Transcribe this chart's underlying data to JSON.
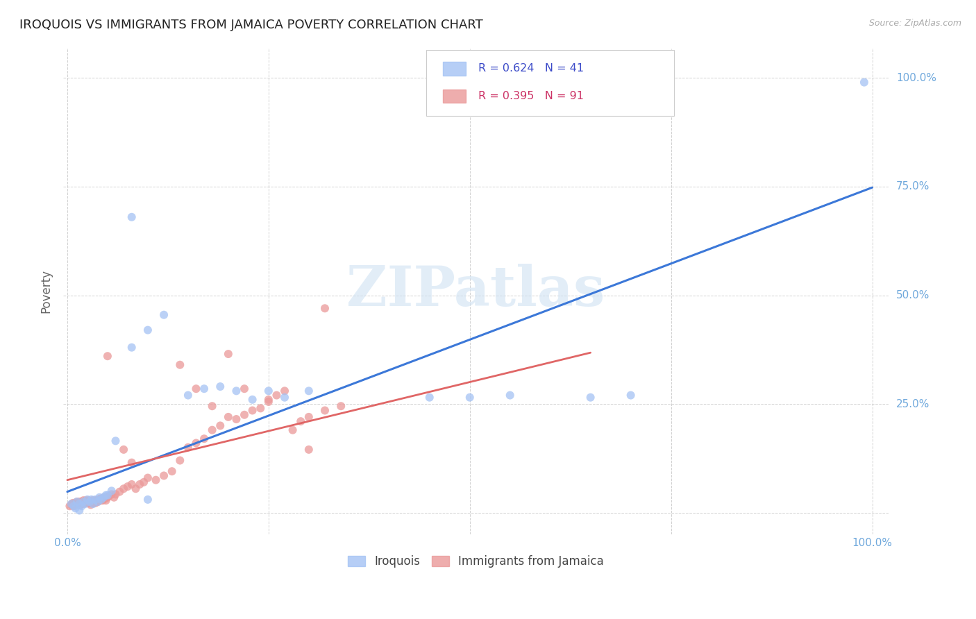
{
  "title": "IROQUOIS VS IMMIGRANTS FROM JAMAICA POVERTY CORRELATION CHART",
  "source": "Source: ZipAtlas.com",
  "ylabel": "Poverty",
  "series1_label": "Iroquois",
  "series2_label": "Immigrants from Jamaica",
  "series1_color": "#a4c2f4",
  "series2_color": "#ea9999",
  "series1_R": "0.624",
  "series1_N": "41",
  "series2_R": "0.395",
  "series2_N": "91",
  "regression1_color": "#3c78d8",
  "regression2_color": "#e06666",
  "watermark_color": "#cfe2f3",
  "background_color": "#ffffff",
  "grid_color": "#cccccc",
  "title_fontsize": 13,
  "legend_text_color": "#3c4bc8",
  "tick_label_color": "#6fa8dc",
  "axis_label_color": "#666666",
  "xlim": [
    -0.005,
    1.02
  ],
  "ylim": [
    -0.05,
    1.07
  ],
  "blue_line_x0": 0.0,
  "blue_line_y0": 0.048,
  "blue_line_x1": 1.0,
  "blue_line_y1": 0.748,
  "pink_line_x0": 0.0,
  "pink_line_y0": 0.075,
  "pink_line_x1": 0.65,
  "pink_line_y1": 0.368,
  "s1_x": [
    0.005,
    0.008,
    0.01,
    0.012,
    0.015,
    0.018,
    0.02,
    0.022,
    0.025,
    0.028,
    0.03,
    0.032,
    0.035,
    0.038,
    0.04,
    0.042,
    0.045,
    0.048,
    0.05,
    0.055,
    0.06,
    0.08,
    0.1,
    0.12,
    0.15,
    0.17,
    0.19,
    0.21,
    0.23,
    0.25,
    0.27,
    0.3,
    0.45,
    0.5,
    0.55,
    0.65,
    0.7,
    0.08,
    0.1,
    0.99,
    0.015
  ],
  "s1_y": [
    0.02,
    0.015,
    0.01,
    0.025,
    0.02,
    0.015,
    0.025,
    0.02,
    0.03,
    0.025,
    0.03,
    0.02,
    0.03,
    0.025,
    0.035,
    0.03,
    0.035,
    0.04,
    0.04,
    0.05,
    0.165,
    0.38,
    0.42,
    0.455,
    0.27,
    0.285,
    0.29,
    0.28,
    0.26,
    0.28,
    0.265,
    0.28,
    0.265,
    0.265,
    0.27,
    0.265,
    0.27,
    0.68,
    0.03,
    0.99,
    0.005
  ],
  "s2_x": [
    0.003,
    0.005,
    0.006,
    0.007,
    0.008,
    0.009,
    0.01,
    0.011,
    0.012,
    0.013,
    0.014,
    0.015,
    0.016,
    0.017,
    0.018,
    0.019,
    0.02,
    0.021,
    0.022,
    0.023,
    0.024,
    0.025,
    0.026,
    0.027,
    0.028,
    0.029,
    0.03,
    0.031,
    0.032,
    0.033,
    0.034,
    0.035,
    0.036,
    0.037,
    0.038,
    0.039,
    0.04,
    0.041,
    0.042,
    0.043,
    0.044,
    0.045,
    0.046,
    0.047,
    0.048,
    0.05,
    0.052,
    0.055,
    0.058,
    0.06,
    0.065,
    0.07,
    0.075,
    0.08,
    0.085,
    0.09,
    0.095,
    0.1,
    0.11,
    0.12,
    0.13,
    0.14,
    0.15,
    0.16,
    0.17,
    0.18,
    0.19,
    0.2,
    0.21,
    0.22,
    0.23,
    0.24,
    0.25,
    0.26,
    0.27,
    0.28,
    0.29,
    0.3,
    0.32,
    0.34,
    0.2,
    0.22,
    0.16,
    0.14,
    0.25,
    0.3,
    0.18,
    0.08,
    0.05,
    0.07,
    0.32
  ],
  "s2_y": [
    0.015,
    0.018,
    0.02,
    0.022,
    0.015,
    0.018,
    0.02,
    0.022,
    0.025,
    0.018,
    0.02,
    0.025,
    0.018,
    0.022,
    0.025,
    0.02,
    0.028,
    0.022,
    0.025,
    0.028,
    0.022,
    0.025,
    0.028,
    0.022,
    0.025,
    0.018,
    0.025,
    0.028,
    0.022,
    0.025,
    0.028,
    0.022,
    0.025,
    0.028,
    0.025,
    0.03,
    0.028,
    0.032,
    0.028,
    0.032,
    0.028,
    0.032,
    0.035,
    0.032,
    0.028,
    0.035,
    0.038,
    0.042,
    0.035,
    0.042,
    0.048,
    0.055,
    0.06,
    0.065,
    0.055,
    0.065,
    0.07,
    0.08,
    0.075,
    0.085,
    0.095,
    0.12,
    0.15,
    0.16,
    0.17,
    0.19,
    0.2,
    0.22,
    0.215,
    0.225,
    0.235,
    0.24,
    0.26,
    0.27,
    0.28,
    0.19,
    0.21,
    0.22,
    0.235,
    0.245,
    0.365,
    0.285,
    0.285,
    0.34,
    0.255,
    0.145,
    0.245,
    0.115,
    0.36,
    0.145,
    0.47
  ]
}
